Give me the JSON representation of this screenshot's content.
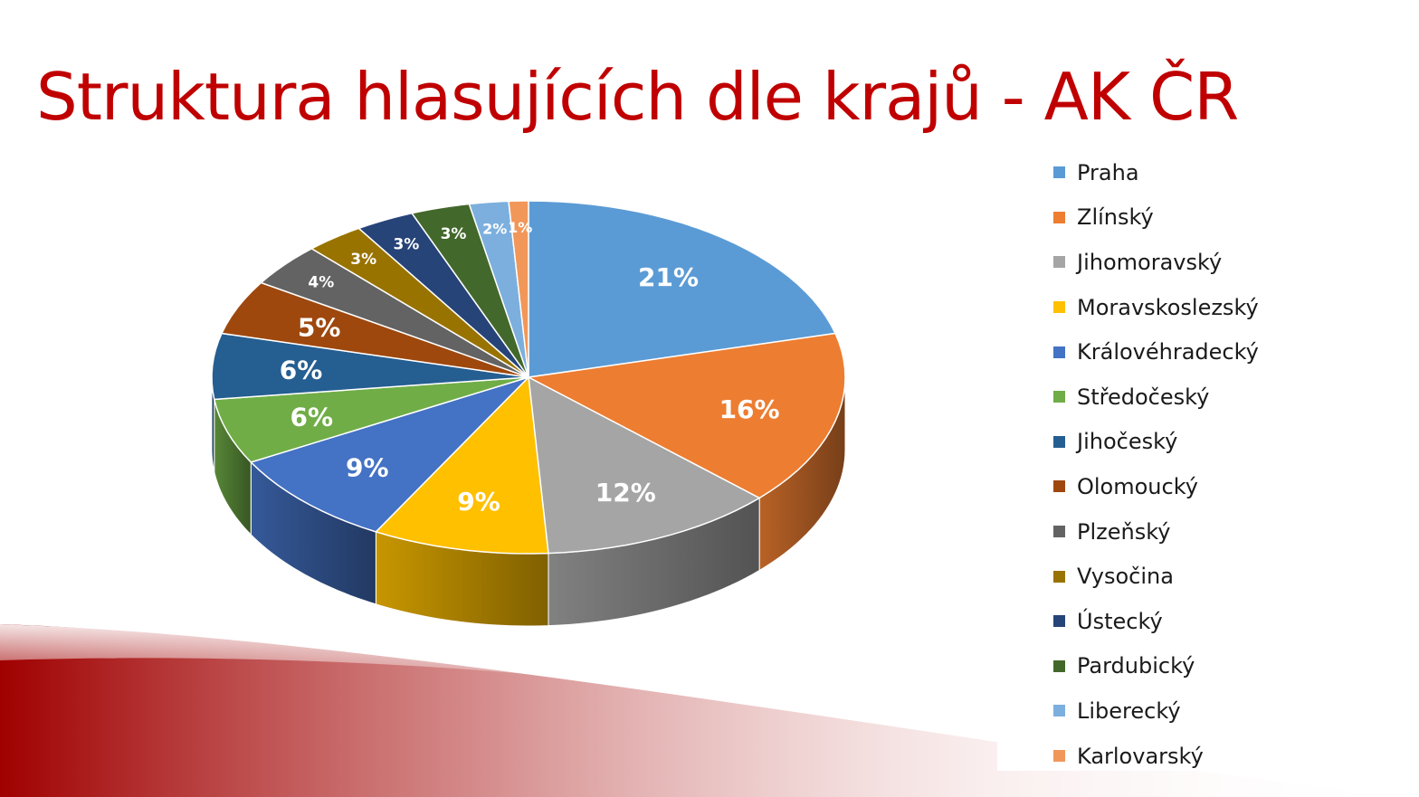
{
  "slide": {
    "title": "Struktura hlasujících dle krajů - AK ČR"
  },
  "chart_data": {
    "type": "pie",
    "style": "3d",
    "title": "Struktura hlasujících dle krajů - AK ČR",
    "legend_position": "right",
    "categories": [
      "Praha",
      "Zlínský",
      "Jihomoravský",
      "Moravskoslezský",
      "Královéhradecký",
      "Středočeský",
      "Jihočeský",
      "Olomoucký",
      "Plzeňský",
      "Vysočina",
      "Ústecký",
      "Pardubický",
      "Liberecký",
      "Karlovarský"
    ],
    "values": [
      21,
      16,
      12,
      9,
      9,
      6,
      6,
      5,
      4,
      3,
      3,
      3,
      2,
      1
    ],
    "labels": [
      "21%",
      "16%",
      "12%",
      "9%",
      "9%",
      "6%",
      "6%",
      "5%",
      "4%",
      "3%",
      "3%",
      "3%",
      "2%",
      "1%"
    ],
    "colors": [
      "#5b9bd5",
      "#ed7d31",
      "#a5a5a5",
      "#ffc000",
      "#4472c4",
      "#70ad47",
      "#255e91",
      "#9e480e",
      "#636363",
      "#997300",
      "#264478",
      "#43682b",
      "#7cafdd",
      "#f1975a"
    ],
    "accent_color": "#c00000"
  }
}
